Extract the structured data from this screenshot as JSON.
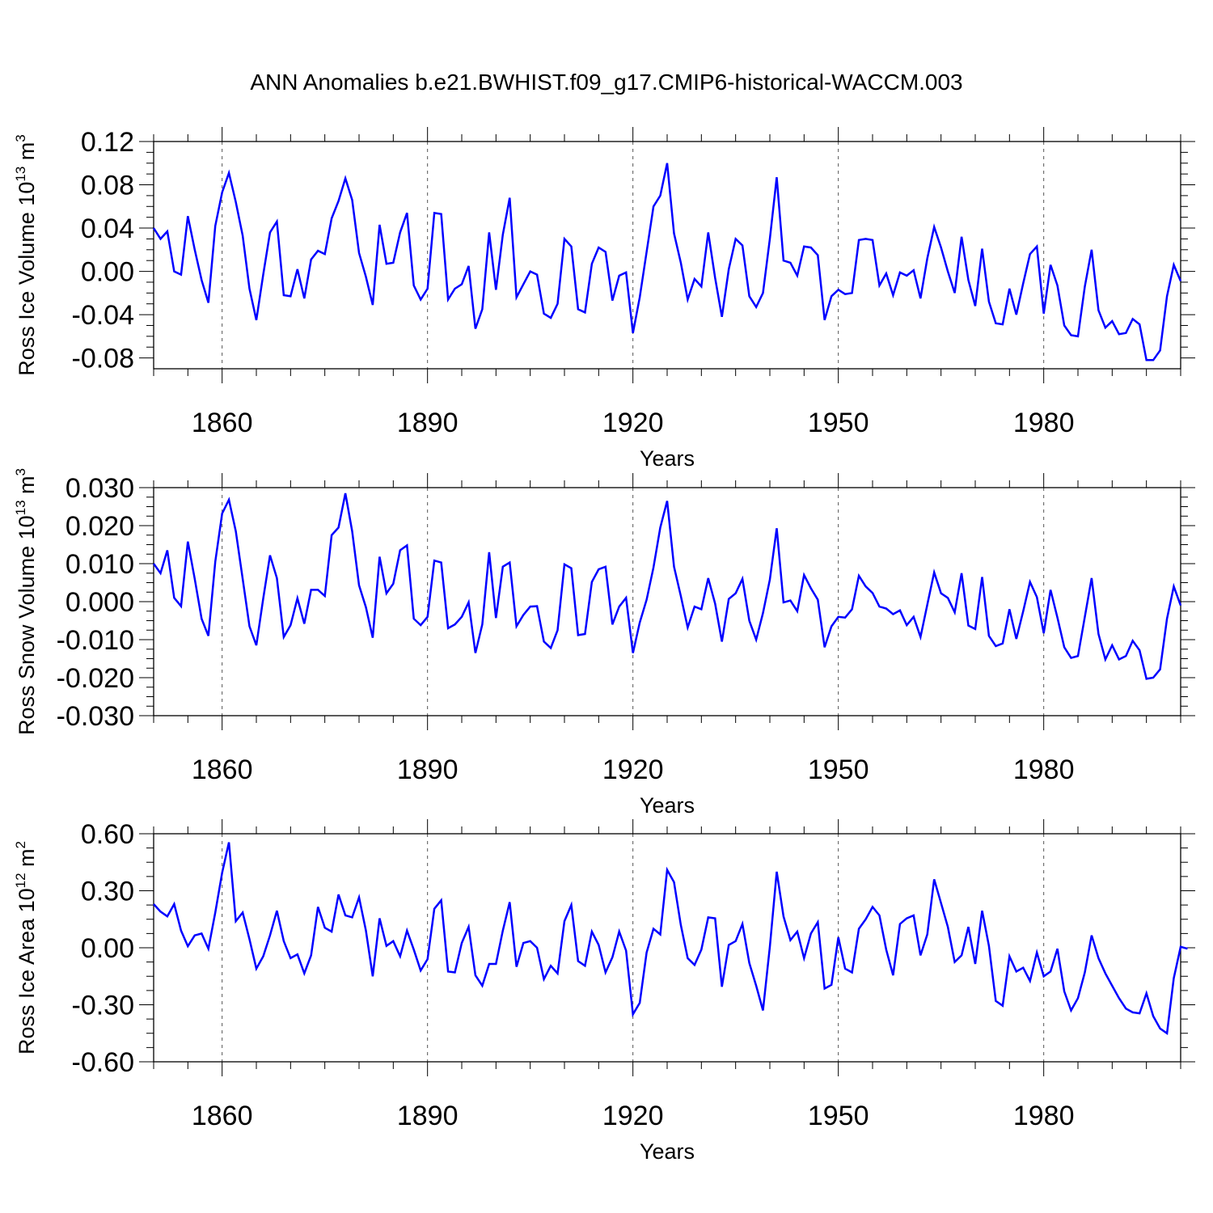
{
  "title": "ANN Anomalies b.e21.BWHIST.f09_g17.CMIP6-historical-WACCM.003",
  "line_color": "#0000ff",
  "chart_data": [
    {
      "type": "line",
      "xlabel": "Years",
      "ylabel": {
        "text": "Ross Ice Volume 10",
        "sup1": "13",
        "unit": " m",
        "sup2": "3"
      },
      "xlim": [
        1850,
        2000
      ],
      "ylim": [
        -0.09,
        0.12
      ],
      "xticks": [
        1860,
        1890,
        1920,
        1950,
        1980
      ],
      "yticks": [
        {
          "v": 0.12,
          "label": "0.12"
        },
        {
          "v": 0.08,
          "label": "0.08"
        },
        {
          "v": 0.04,
          "label": "0.04"
        },
        {
          "v": 0.0,
          "label": "0.00"
        },
        {
          "v": -0.04,
          "label": "-0.04"
        },
        {
          "v": -0.08,
          "label": "-0.08"
        }
      ],
      "grid": "dashed vertical at x ticks",
      "series": [
        {
          "x_start": 1850,
          "values": [
            0.04,
            0.03,
            0.037,
            0.0,
            -0.003,
            0.051,
            0.02,
            -0.008,
            -0.029,
            0.042,
            0.073,
            0.091,
            0.064,
            0.033,
            -0.016,
            -0.045,
            -0.003,
            0.036,
            0.046,
            -0.022,
            -0.023,
            0.002,
            -0.025,
            0.011,
            0.019,
            0.016,
            0.049,
            0.065,
            0.086,
            0.066,
            0.017,
            -0.005,
            -0.031,
            0.043,
            0.007,
            0.008,
            0.036,
            0.054,
            -0.013,
            -0.026,
            -0.016,
            0.054,
            0.053,
            -0.026,
            -0.016,
            -0.012,
            0.005,
            -0.053,
            -0.035,
            0.036,
            -0.017,
            0.034,
            0.068,
            -0.024,
            -0.012,
            0.0,
            -0.003,
            -0.039,
            -0.043,
            -0.03,
            0.03,
            0.023,
            -0.035,
            -0.038,
            0.007,
            0.022,
            0.018,
            -0.027,
            -0.004,
            -0.001,
            -0.057,
            -0.024,
            0.018,
            0.06,
            0.07,
            0.1,
            0.035,
            0.008,
            -0.026,
            -0.007,
            -0.014,
            0.036,
            -0.006,
            -0.042,
            0.002,
            0.03,
            0.024,
            -0.023,
            -0.033,
            -0.02,
            0.03,
            0.087,
            0.01,
            0.008,
            -0.004,
            0.023,
            0.022,
            0.015,
            -0.045,
            -0.023,
            -0.017,
            -0.021,
            -0.02,
            0.029,
            0.03,
            0.029,
            -0.013,
            -0.002,
            -0.022,
            -0.001,
            -0.004,
            0.001,
            -0.025,
            0.012,
            0.041,
            0.022,
            0.0,
            -0.02,
            0.032,
            -0.008,
            -0.032,
            0.021,
            -0.028,
            -0.048,
            -0.049,
            -0.016,
            -0.04,
            -0.011,
            0.016,
            0.023,
            -0.039,
            0.006,
            -0.013,
            -0.05,
            -0.059,
            -0.06,
            -0.014,
            0.02,
            -0.036,
            -0.052,
            -0.046,
            -0.058,
            -0.057,
            -0.044,
            -0.049,
            -0.082,
            -0.082,
            -0.073,
            -0.023,
            0.006,
            -0.009
          ]
        }
      ]
    },
    {
      "type": "line",
      "xlabel": "Years",
      "ylabel": {
        "text": "Ross Snow Volume 10",
        "sup1": "13",
        "unit": " m",
        "sup2": "3"
      },
      "xlim": [
        1850,
        2000
      ],
      "ylim": [
        -0.03,
        0.03
      ],
      "xticks": [
        1860,
        1890,
        1920,
        1950,
        1980
      ],
      "yticks": [
        {
          "v": 0.03,
          "label": "0.030"
        },
        {
          "v": 0.02,
          "label": "0.020"
        },
        {
          "v": 0.01,
          "label": "0.010"
        },
        {
          "v": 0.0,
          "label": "0.000"
        },
        {
          "v": -0.01,
          "label": "-0.010"
        },
        {
          "v": -0.02,
          "label": "-0.020"
        },
        {
          "v": -0.03,
          "label": "-0.030"
        }
      ],
      "grid": "dashed vertical at x ticks",
      "series": [
        {
          "x_start": 1850,
          "values": [
            0.01,
            0.0075,
            0.0135,
            0.001,
            -0.0012,
            0.0158,
            0.006,
            -0.0045,
            -0.009,
            0.0105,
            0.0232,
            0.0268,
            0.0185,
            0.006,
            -0.0065,
            -0.0115,
            0.0008,
            0.0122,
            0.0062,
            -0.0093,
            -0.0062,
            0.0009,
            -0.0058,
            0.0031,
            0.0031,
            0.0015,
            0.0175,
            0.0195,
            0.0285,
            0.0185,
            0.0043,
            -0.0015,
            -0.0095,
            0.0118,
            0.0022,
            0.0047,
            0.0135,
            0.0148,
            -0.0045,
            -0.0062,
            -0.004,
            0.0108,
            0.0103,
            -0.007,
            -0.006,
            -0.004,
            -0.0002,
            -0.0135,
            -0.006,
            0.013,
            -0.0043,
            0.0092,
            0.0103,
            -0.0065,
            -0.0035,
            -0.0013,
            -0.0012,
            -0.0105,
            -0.0122,
            -0.0075,
            0.0098,
            0.0088,
            -0.0088,
            -0.0085,
            0.0052,
            0.0085,
            0.0092,
            -0.006,
            -0.0013,
            0.001,
            -0.0135,
            -0.0055,
            0.0005,
            0.009,
            0.0195,
            0.0265,
            0.0092,
            0.0015,
            -0.0068,
            -0.0013,
            -0.002,
            0.0062,
            -0.0005,
            -0.0105,
            0.0007,
            0.0022,
            0.006,
            -0.005,
            -0.01,
            -0.003,
            0.0058,
            0.0193,
            -0.0002,
            0.0003,
            -0.0025,
            0.007,
            0.0035,
            0.0005,
            -0.012,
            -0.0065,
            -0.004,
            -0.0042,
            -0.002,
            0.0068,
            0.004,
            0.0023,
            -0.0013,
            -0.0018,
            -0.0033,
            -0.0023,
            -0.0062,
            -0.004,
            -0.0093,
            -0.0008,
            0.0077,
            0.0022,
            0.001,
            -0.0028,
            0.0075,
            -0.0063,
            -0.0072,
            0.0065,
            -0.009,
            -0.0117,
            -0.011,
            -0.002,
            -0.0098,
            -0.0025,
            0.0052,
            0.0012,
            -0.0083,
            0.0031,
            -0.0042,
            -0.012,
            -0.0148,
            -0.0143,
            -0.004,
            0.0062,
            -0.0085,
            -0.0152,
            -0.0115,
            -0.0152,
            -0.0143,
            -0.0103,
            -0.0128,
            -0.0203,
            -0.02,
            -0.0178,
            -0.0045,
            0.004,
            -0.001
          ]
        }
      ]
    },
    {
      "type": "line",
      "xlabel": "Years",
      "ylabel": {
        "text": "Ross Ice Area 10",
        "sup1": "12",
        "unit": " m",
        "sup2": "2"
      },
      "xlim": [
        1850,
        2000
      ],
      "ylim": [
        -0.6,
        0.6
      ],
      "xticks": [
        1860,
        1890,
        1920,
        1950,
        1980
      ],
      "yticks": [
        {
          "v": 0.6,
          "label": "0.60"
        },
        {
          "v": 0.3,
          "label": "0.30"
        },
        {
          "v": 0.0,
          "label": "0.00"
        },
        {
          "v": -0.3,
          "label": "-0.30"
        },
        {
          "v": -0.6,
          "label": "-0.60"
        }
      ],
      "grid": "dashed vertical at x ticks",
      "series": [
        {
          "x_start": 1850,
          "values": [
            0.23,
            0.19,
            0.165,
            0.23,
            0.09,
            0.008,
            0.065,
            0.075,
            -0.005,
            0.185,
            0.395,
            0.555,
            0.14,
            0.185,
            0.045,
            -0.11,
            -0.045,
            0.065,
            0.195,
            0.035,
            -0.055,
            -0.035,
            -0.135,
            -0.04,
            0.215,
            0.105,
            0.085,
            0.28,
            0.17,
            0.16,
            0.265,
            0.09,
            -0.15,
            0.155,
            0.01,
            0.035,
            -0.045,
            0.09,
            -0.01,
            -0.12,
            -0.06,
            0.205,
            0.25,
            -0.125,
            -0.13,
            0.025,
            0.11,
            -0.145,
            -0.2,
            -0.085,
            -0.085,
            0.09,
            0.24,
            -0.1,
            0.025,
            0.035,
            0.0,
            -0.165,
            -0.095,
            -0.135,
            0.14,
            0.225,
            -0.07,
            -0.095,
            0.085,
            0.015,
            -0.13,
            -0.05,
            0.085,
            -0.015,
            -0.35,
            -0.29,
            -0.025,
            0.1,
            0.07,
            0.41,
            0.345,
            0.12,
            -0.055,
            -0.09,
            -0.01,
            0.16,
            0.155,
            -0.205,
            0.015,
            0.035,
            0.125,
            -0.08,
            -0.2,
            -0.33,
            0.005,
            0.4,
            0.165,
            0.04,
            0.085,
            -0.055,
            0.075,
            0.135,
            -0.215,
            -0.195,
            0.055,
            -0.11,
            -0.13,
            0.1,
            0.15,
            0.215,
            0.17,
            -0.01,
            -0.145,
            0.125,
            0.155,
            0.17,
            -0.04,
            0.07,
            0.36,
            0.235,
            0.11,
            -0.075,
            -0.04,
            0.11,
            -0.085,
            0.195,
            0.01,
            -0.28,
            -0.305,
            -0.045,
            -0.125,
            -0.105,
            -0.175,
            -0.025,
            -0.15,
            -0.125,
            -0.005,
            -0.23,
            -0.33,
            -0.265,
            -0.13,
            0.065,
            -0.055,
            -0.135,
            -0.2,
            -0.265,
            -0.32,
            -0.34,
            -0.345,
            -0.24,
            -0.36,
            -0.425,
            -0.45,
            -0.16,
            0.005,
            -0.005
          ]
        }
      ]
    }
  ]
}
